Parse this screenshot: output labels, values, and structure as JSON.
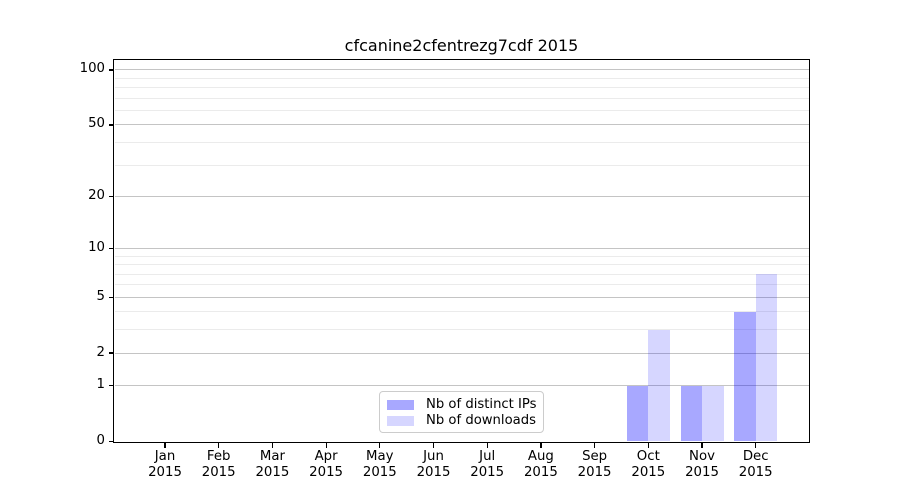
{
  "chart_data": {
    "type": "bar",
    "title": "cfcanine2cfentrezg7cdf 2015",
    "categories": [
      "Jan",
      "Feb",
      "Mar",
      "Apr",
      "May",
      "Jun",
      "Jul",
      "Aug",
      "Sep",
      "Oct",
      "Nov",
      "Dec"
    ],
    "year": "2015",
    "x_tick_labels": [
      "Jan 2015",
      "Feb 2015",
      "Mar 2015",
      "Apr 2015",
      "May 2015",
      "Jun 2015",
      "Jul 2015",
      "Aug 2015",
      "Sep 2015",
      "Oct 2015",
      "Nov 2015",
      "Dec 2015"
    ],
    "series": [
      {
        "name": "Nb of distinct IPs",
        "values": [
          0,
          0,
          0,
          0,
          0,
          0,
          0,
          0,
          0,
          1,
          1,
          4
        ],
        "color": "#0000ff",
        "alpha": 0.34
      },
      {
        "name": "Nb of downloads",
        "values": [
          0,
          0,
          0,
          0,
          0,
          0,
          0,
          0,
          0,
          3,
          1,
          7
        ],
        "color": "#0000ff",
        "alpha": 0.16
      }
    ],
    "xlabel": "",
    "ylabel": "",
    "yscale": "log1p",
    "ylim": [
      0,
      115
    ],
    "y_major_ticks": [
      100,
      50,
      20,
      10,
      5,
      2,
      1,
      0
    ],
    "y_minor_gridlines": [
      3,
      4,
      6,
      7,
      8,
      9,
      30,
      40,
      60,
      70,
      80,
      90
    ],
    "grid": "both",
    "legend_position": "lower center",
    "colors": {
      "major_grid": "#c4c4c4",
      "minor_grid": "#ebebeb",
      "spine": "#000000",
      "background": "#ffffff",
      "text": "#000000"
    }
  }
}
